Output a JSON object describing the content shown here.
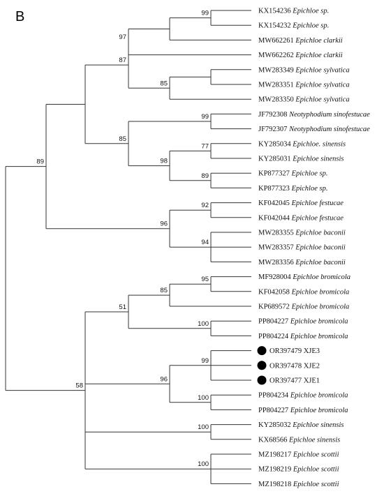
{
  "panel_label": "B",
  "taxa": [
    {
      "acc": "KX154236",
      "name": "Epichloe sp.",
      "marker": false
    },
    {
      "acc": "KX154232",
      "name": "Epichloe sp.",
      "marker": false
    },
    {
      "acc": "MW662261",
      "name": "Epichloe clarkii",
      "marker": false
    },
    {
      "acc": "MW662262",
      "name": "Epichloe clarkii",
      "marker": false
    },
    {
      "acc": "MW283349",
      "name": "Epichloe sylvatica",
      "marker": false
    },
    {
      "acc": "MW283351",
      "name": "Epichloe sylvatica",
      "marker": false
    },
    {
      "acc": "MW283350",
      "name": "Epichloe sylvatica",
      "marker": false
    },
    {
      "acc": "JF792308",
      "name": "Neotyphodium sinofestucae",
      "marker": false
    },
    {
      "acc": "JF792307",
      "name": "Neotyphodium sinofestucae",
      "marker": false
    },
    {
      "acc": "KY285034",
      "name": "Epichloe. sinensis",
      "marker": false
    },
    {
      "acc": "KY285031",
      "name": "Epichloe sinensis",
      "marker": false
    },
    {
      "acc": "KP877327",
      "name": "Epichloe sp.",
      "marker": false
    },
    {
      "acc": "KP877323",
      "name": "Epichloe sp.",
      "marker": false
    },
    {
      "acc": "KF042045",
      "name": "Epichloe festucae",
      "marker": false
    },
    {
      "acc": "KF042044",
      "name": "Epichloe festucae",
      "marker": false
    },
    {
      "acc": "MW283355",
      "name": "Epichloe baconii",
      "marker": false
    },
    {
      "acc": "MW283357",
      "name": "Epichloe baconii",
      "marker": false
    },
    {
      "acc": "MW283356",
      "name": "Epichloe baconii",
      "marker": false
    },
    {
      "acc": "MF928004",
      "name": "Epichloe bromicola",
      "marker": false
    },
    {
      "acc": "KF042058",
      "name": "Epichloe bromicola",
      "marker": false
    },
    {
      "acc": "KP689572",
      "name": "Epichloe bromicola",
      "marker": false
    },
    {
      "acc": "PP804227",
      "name": "Epichloe bromicola",
      "marker": false
    },
    {
      "acc": "PP804224",
      "name": "Epichloe bromicola",
      "marker": false
    },
    {
      "acc": "OR397479",
      "name": "XJE3",
      "marker": true
    },
    {
      "acc": "OR397478",
      "name": "XJE2",
      "marker": true
    },
    {
      "acc": "OR397477",
      "name": "XJE1",
      "marker": true
    },
    {
      "acc": "PP804234",
      "name": "Epichloe bromicola",
      "marker": false
    },
    {
      "acc": "PP804227",
      "name": "Epichloe bromicola",
      "marker": false
    },
    {
      "acc": "KY285032",
      "name": "Epichloe sinensis",
      "marker": false
    },
    {
      "acc": "KX68566",
      "name": "Epichloe sinensis",
      "marker": false
    },
    {
      "acc": "MZ198217",
      "name": "Epichloe scottii",
      "marker": false
    },
    {
      "acc": "MZ198219",
      "name": "Epichloe scottii",
      "marker": false
    },
    {
      "acc": "MZ198218",
      "name": "Epichloe scottii",
      "marker": false
    }
  ],
  "bootstrap_labels": [
    "99",
    "97",
    "87",
    "85",
    "89",
    "99",
    "77",
    "98",
    "89",
    "85",
    "92",
    "96",
    "94",
    "95",
    "85",
    "51",
    "100",
    "99",
    "96",
    "100",
    "100",
    "100",
    "58"
  ]
}
